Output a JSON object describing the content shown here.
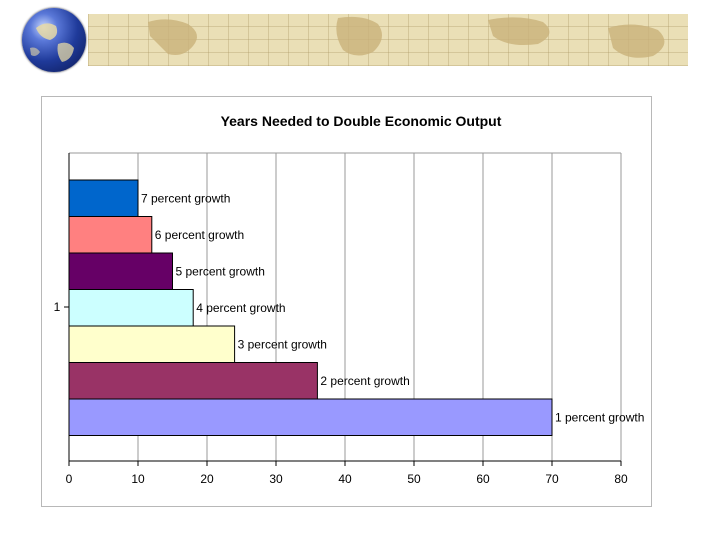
{
  "slide": {
    "banner_icon": "world-map-strip",
    "logo_icon": "globe-icon"
  },
  "chart_data": {
    "type": "bar",
    "orientation": "horizontal",
    "stacked": false,
    "title": "Years Needed to Double Economic Output",
    "xlabel": "",
    "ylabel": "",
    "category_label": "1",
    "xlim": [
      0,
      80
    ],
    "xticks": [
      0,
      10,
      20,
      30,
      40,
      50,
      60,
      70,
      80
    ],
    "grid": true,
    "legend": "none",
    "series": [
      {
        "name": "7 percent growth",
        "value": 10,
        "color": "#0066cc"
      },
      {
        "name": "6 percent growth",
        "value": 12,
        "color": "#ff8080"
      },
      {
        "name": "5 percent growth",
        "value": 15,
        "color": "#660066"
      },
      {
        "name": "4 percent growth",
        "value": 18,
        "color": "#ccffff"
      },
      {
        "name": "3 percent growth",
        "value": 24,
        "color": "#ffffcc"
      },
      {
        "name": "2 percent growth",
        "value": 36,
        "color": "#993366"
      },
      {
        "name": "1 percent growth",
        "value": 70,
        "color": "#9999ff"
      }
    ]
  }
}
